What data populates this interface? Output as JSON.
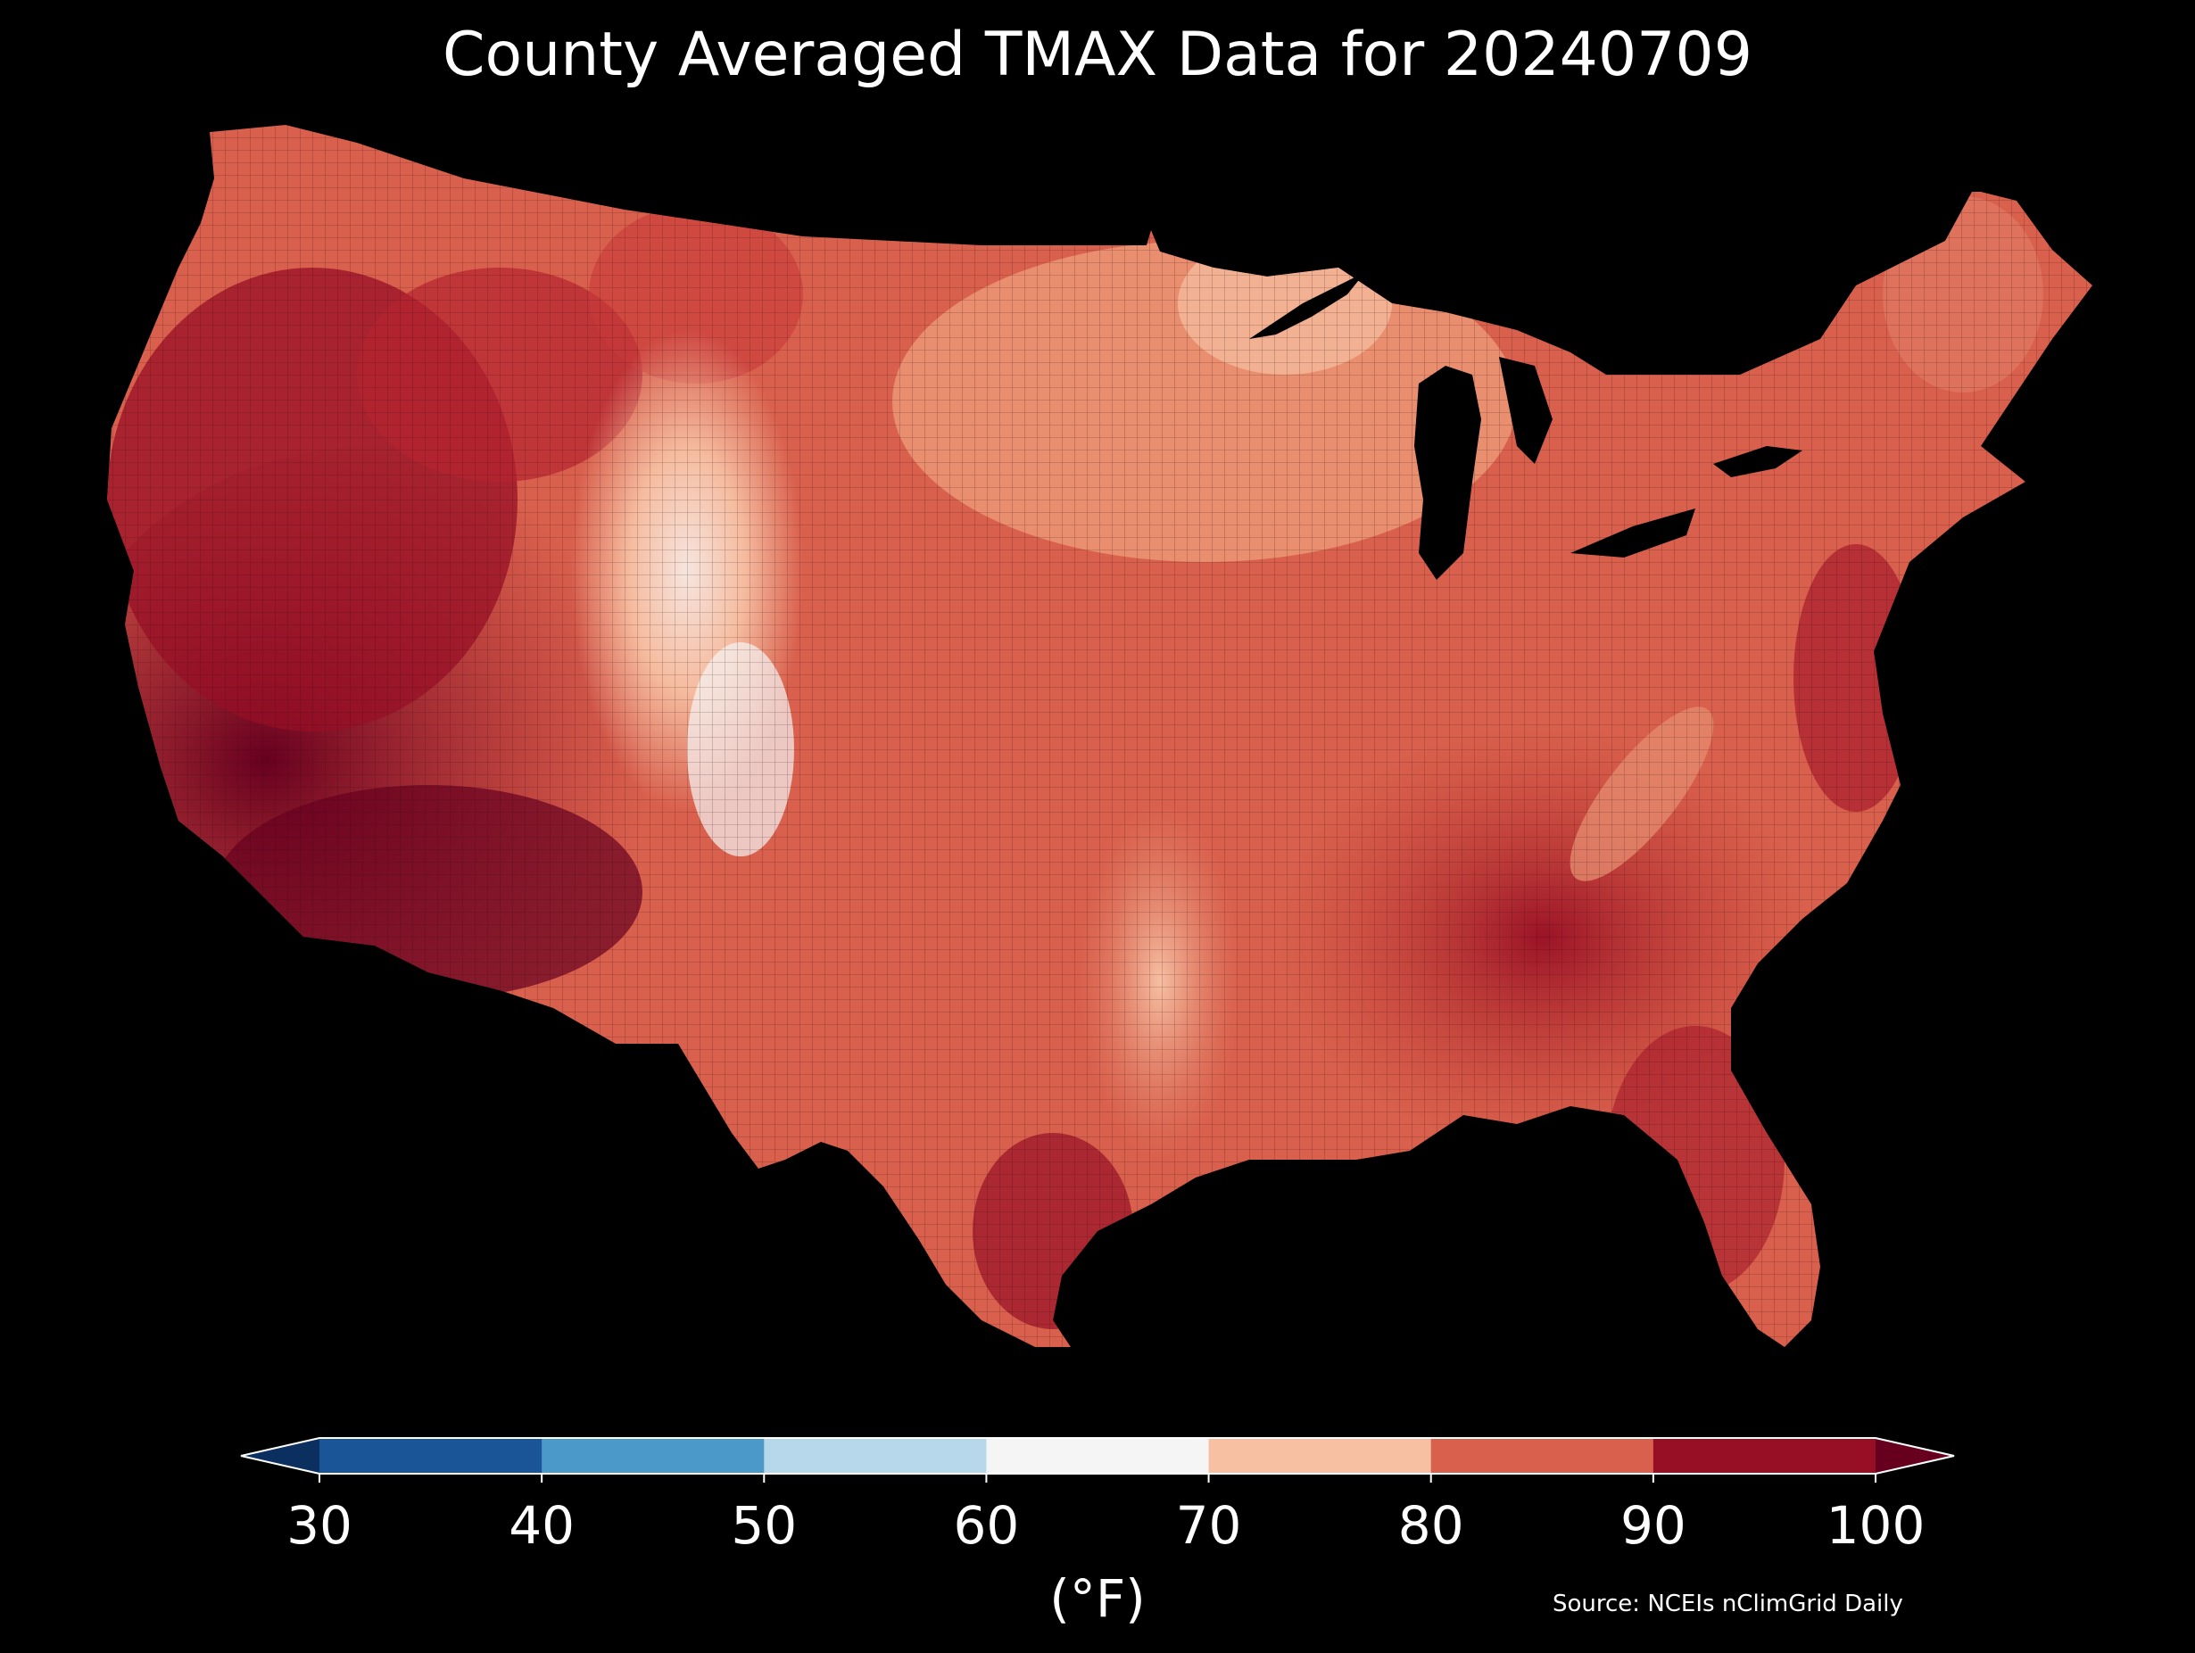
{
  "title": "County Averaged TMAX Data for 20240709",
  "source": "Source: NCEIs nClimGrid Daily",
  "colorbar": {
    "unit_label": "(°F)",
    "ticks": [
      "30",
      "40",
      "50",
      "60",
      "70",
      "80",
      "90",
      "100"
    ],
    "bins": [
      {
        "range": "<30",
        "color": "#0b2f5e"
      },
      {
        "range": "30-40",
        "color": "#1a5598"
      },
      {
        "range": "40-50",
        "color": "#4b99c8"
      },
      {
        "range": "50-60",
        "color": "#b6d8ea"
      },
      {
        "range": "60-70",
        "color": "#f5f5f5"
      },
      {
        "range": "70-80",
        "color": "#f7c0a3"
      },
      {
        "range": "80-90",
        "color": "#d9604d"
      },
      {
        "range": "90-100",
        "color": "#970f25"
      },
      {
        "range": ">100",
        "color": "#67001f"
      }
    ],
    "extend": "both"
  },
  "colors": {
    "background": "#000000",
    "text": "#ffffff"
  }
}
